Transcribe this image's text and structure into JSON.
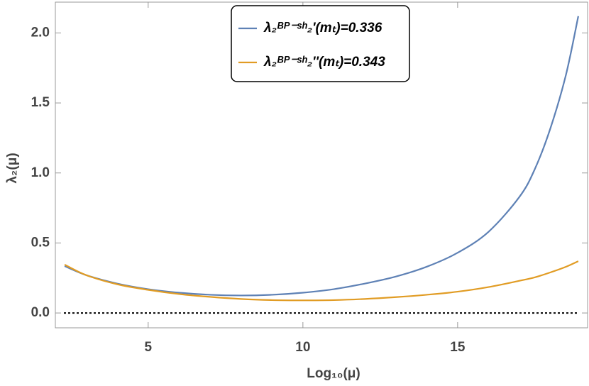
{
  "chart_data": {
    "type": "line",
    "x_label": "Log₁₀(μ)",
    "y_label": "λ₂(μ)",
    "x": [
      2.3,
      3,
      4,
      5,
      6,
      7,
      8,
      9,
      10,
      11,
      12,
      13,
      14,
      15,
      16,
      17,
      17.5,
      18,
      18.5,
      18.9
    ],
    "series": [
      {
        "name": "λ₂ᴮᴾ⁻ˢʰ₂'(mₜ)=0.336",
        "color": "#5e81b5",
        "values": [
          0.335,
          0.27,
          0.21,
          0.17,
          0.145,
          0.13,
          0.125,
          0.13,
          0.145,
          0.17,
          0.21,
          0.26,
          0.33,
          0.43,
          0.58,
          0.83,
          1.03,
          1.32,
          1.7,
          2.12
        ]
      },
      {
        "name": "λ₂ᴮᴾ⁻ˢʰ₂''(mₜ)=0.343",
        "color": "#e19c24",
        "values": [
          0.345,
          0.27,
          0.205,
          0.165,
          0.135,
          0.115,
          0.1,
          0.092,
          0.09,
          0.092,
          0.1,
          0.113,
          0.13,
          0.152,
          0.185,
          0.23,
          0.255,
          0.29,
          0.33,
          0.37
        ]
      }
    ],
    "xlim": [
      2,
      19.2
    ],
    "ylim": [
      -0.106,
      2.22
    ],
    "xticks": [
      5,
      10,
      15
    ],
    "yticks": [
      {
        "value": 0,
        "label": "0.0"
      },
      {
        "value": 0.5,
        "label": "0.5"
      },
      {
        "value": 1,
        "label": "1.0"
      },
      {
        "value": 1.5,
        "label": "1.5"
      },
      {
        "value": 2,
        "label": "2.0"
      }
    ],
    "reference_line": 0,
    "legend": "top"
  }
}
